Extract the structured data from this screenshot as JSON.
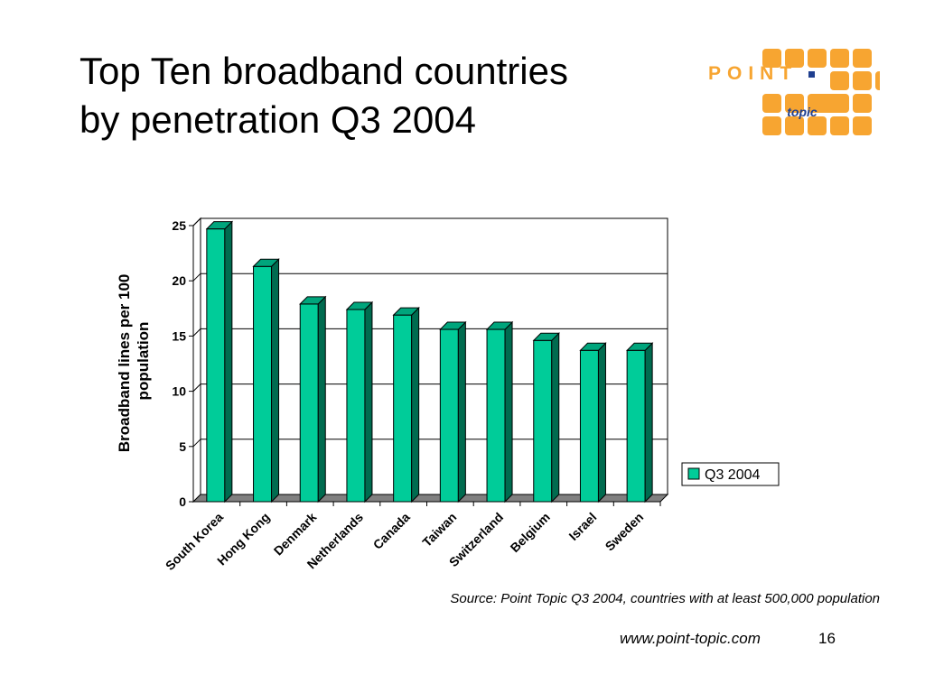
{
  "slide": {
    "title_line1": "Top Ten broadband countries",
    "title_line2": "by penetration Q3 2004",
    "source": "Source: Point Topic Q3 2004, countries with at least 500,000 population",
    "footer_url": "www.point-topic.com",
    "page_number": "16"
  },
  "logo": {
    "word": "POINT",
    "sub": "topic",
    "primary_color": "#F7A531",
    "dark_color": "#1F3F8F"
  },
  "chart_data": {
    "type": "bar",
    "title": "",
    "xlabel": "",
    "ylabel": "Broadband lines per 100 population",
    "ylabel_lines": [
      "Broadband lines per 100",
      "population"
    ],
    "categories": [
      "South Korea",
      "Hong Kong",
      "Denmark",
      "Netherlands",
      "Canada",
      "Taiwan",
      "Switzerland",
      "Belgium",
      "Israel",
      "Sweden"
    ],
    "series": [
      {
        "name": "Q3 2004",
        "values": [
          24.7,
          21.3,
          17.9,
          17.4,
          16.9,
          15.6,
          15.6,
          14.6,
          13.7,
          13.7
        ],
        "color": "#00CC99"
      }
    ],
    "ylim": [
      0,
      25
    ],
    "yticks": [
      0,
      5,
      10,
      15,
      20,
      25
    ],
    "grid": true,
    "legend_position": "right",
    "bar_3d": true
  }
}
